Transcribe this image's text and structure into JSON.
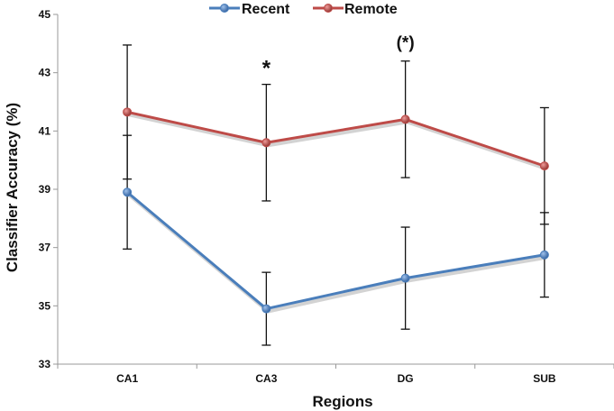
{
  "chart_data": {
    "type": "line",
    "title": "",
    "xlabel": "Regions",
    "ylabel": "Classifier Accuracy (%)",
    "categories": [
      "CA1",
      "CA3",
      "DG",
      "SUB"
    ],
    "ylim": [
      33,
      45
    ],
    "yticks": [
      33,
      35,
      37,
      39,
      41,
      43,
      45
    ],
    "grid": false,
    "legend_position": "top-center",
    "series": [
      {
        "name": "Recent",
        "color": "#4A7EBB",
        "values": [
          38.9,
          34.9,
          35.95,
          36.75
        ],
        "error": [
          1.95,
          1.25,
          1.75,
          1.45
        ]
      },
      {
        "name": "Remote",
        "color": "#BE4B48",
        "values": [
          41.65,
          40.6,
          41.4,
          39.8
        ],
        "error": [
          2.3,
          2.0,
          2.0,
          2.0
        ]
      }
    ],
    "annotations": [
      {
        "category": "CA3",
        "text": "*"
      },
      {
        "category": "DG",
        "text": "(*)"
      }
    ]
  }
}
